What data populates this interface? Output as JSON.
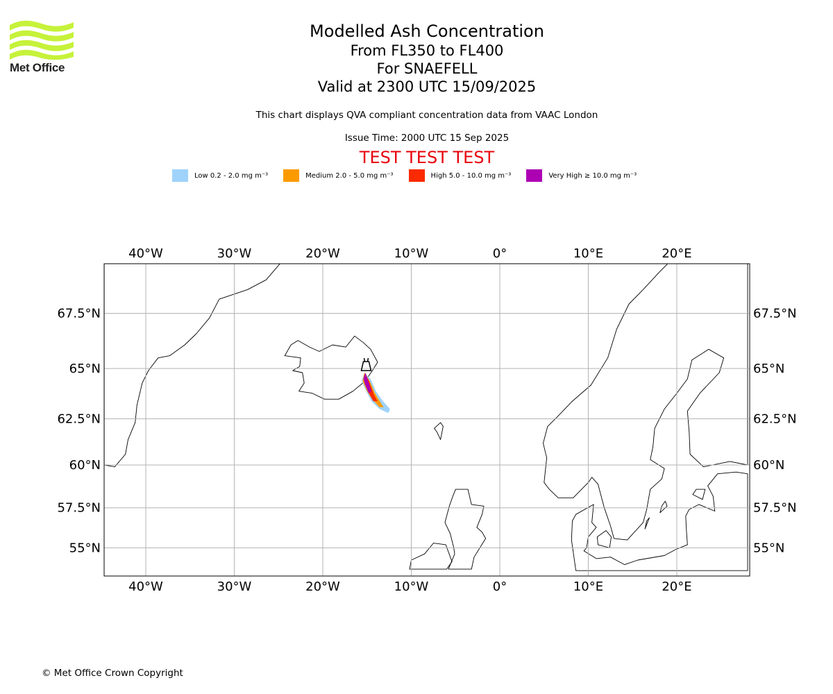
{
  "logo": {
    "name": "Met Office",
    "color": "#c6f23a"
  },
  "title": {
    "main": "Modelled Ash Concentration",
    "levels": "From FL350 to FL400",
    "volcano": "For SNAEFELL",
    "valid": "Valid at 2300 UTC 15/09/2025"
  },
  "description": "This chart displays QVA compliant concentration data from VAAC London",
  "issue_time": "Issue Time: 2000 UTC 15 Sep 2025",
  "test_banner": {
    "text": "TEST TEST TEST",
    "color": "#e8000b"
  },
  "legend": [
    {
      "label": "Low 0.2 - 2.0 mg m⁻³",
      "color": "#9fd3fb"
    },
    {
      "label": "Medium 2.0 - 5.0 mg m⁻³",
      "color": "#fb9a00"
    },
    {
      "label": "High 5.0 - 10.0 mg m⁻³",
      "color": "#fb2a00"
    },
    {
      "label": "Very High ≥ 10.0 mg m⁻³",
      "color": "#ad00b3"
    }
  ],
  "map": {
    "lon_ticks": [
      "40°W",
      "30°W",
      "20°W",
      "10°W",
      "0°",
      "10°E",
      "20°E"
    ],
    "lat_ticks": [
      "67.5°N",
      "65°N",
      "62.5°N",
      "60°N",
      "57.5°N",
      "55°N"
    ],
    "lon_values": [
      -40,
      -30,
      -20,
      -10,
      0,
      10,
      20
    ],
    "lat_values": [
      67.5,
      65,
      62.5,
      60,
      57.5,
      55
    ],
    "extent": {
      "lon_min": -44.7,
      "lon_max": 28.0,
      "lat_min": 53.6,
      "lat_max": 69.9
    },
    "volcano_marker": {
      "name": "SNAEFELL",
      "lon": -15.1,
      "lat": 64.9
    }
  },
  "copyright": "© Met Office Crown Copyright"
}
